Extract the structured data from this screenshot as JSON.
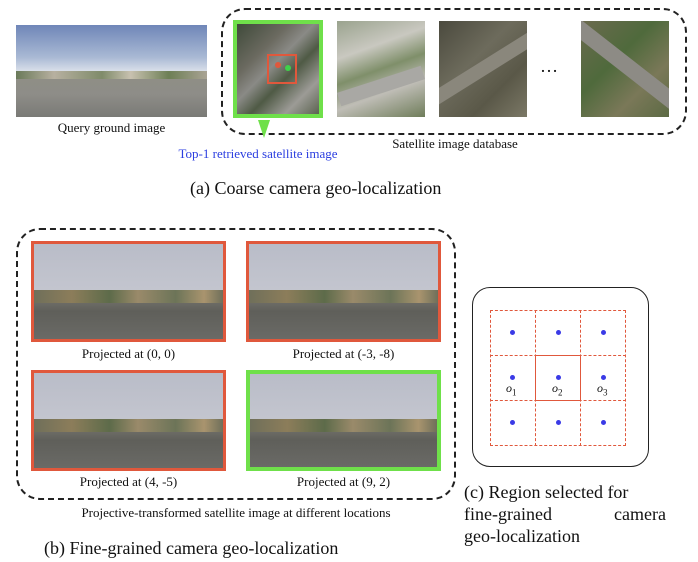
{
  "part_a": {
    "query_caption": "Query ground image",
    "retrieved_caption": "Top-1 retrieved satellite image",
    "database_caption": "Satellite image database",
    "ellipsis": "…",
    "title": "(a) Coarse camera geo-localization",
    "colors": {
      "retrieved_caption": "#2b3ee0",
      "retrieved_border": "#6fe04a",
      "marker": "#e0583c"
    }
  },
  "part_b": {
    "projections": [
      {
        "caption": "Projected at (0, 0)",
        "border": "red"
      },
      {
        "caption": "Projected at (-3, -8)",
        "border": "red"
      },
      {
        "caption": "Projected at (4, -5)",
        "border": "red"
      },
      {
        "caption": "Projected at (9, 2)",
        "border": "green"
      }
    ],
    "group_caption": "Projective-transformed satellite image at different locations",
    "title": "(b) Fine-grained camera geo-localization"
  },
  "part_c": {
    "labels": [
      {
        "base": "o",
        "sub": "1"
      },
      {
        "base": "o",
        "sub": "2"
      },
      {
        "base": "o",
        "sub": "3"
      }
    ],
    "title_line1": "(c) Region selected for",
    "title_line2_left": "fine-grained",
    "title_line2_right": "camera",
    "title_line3": "geo-localization",
    "colors": {
      "grid": "#e0583c",
      "dots": "#3a3ae6"
    }
  }
}
